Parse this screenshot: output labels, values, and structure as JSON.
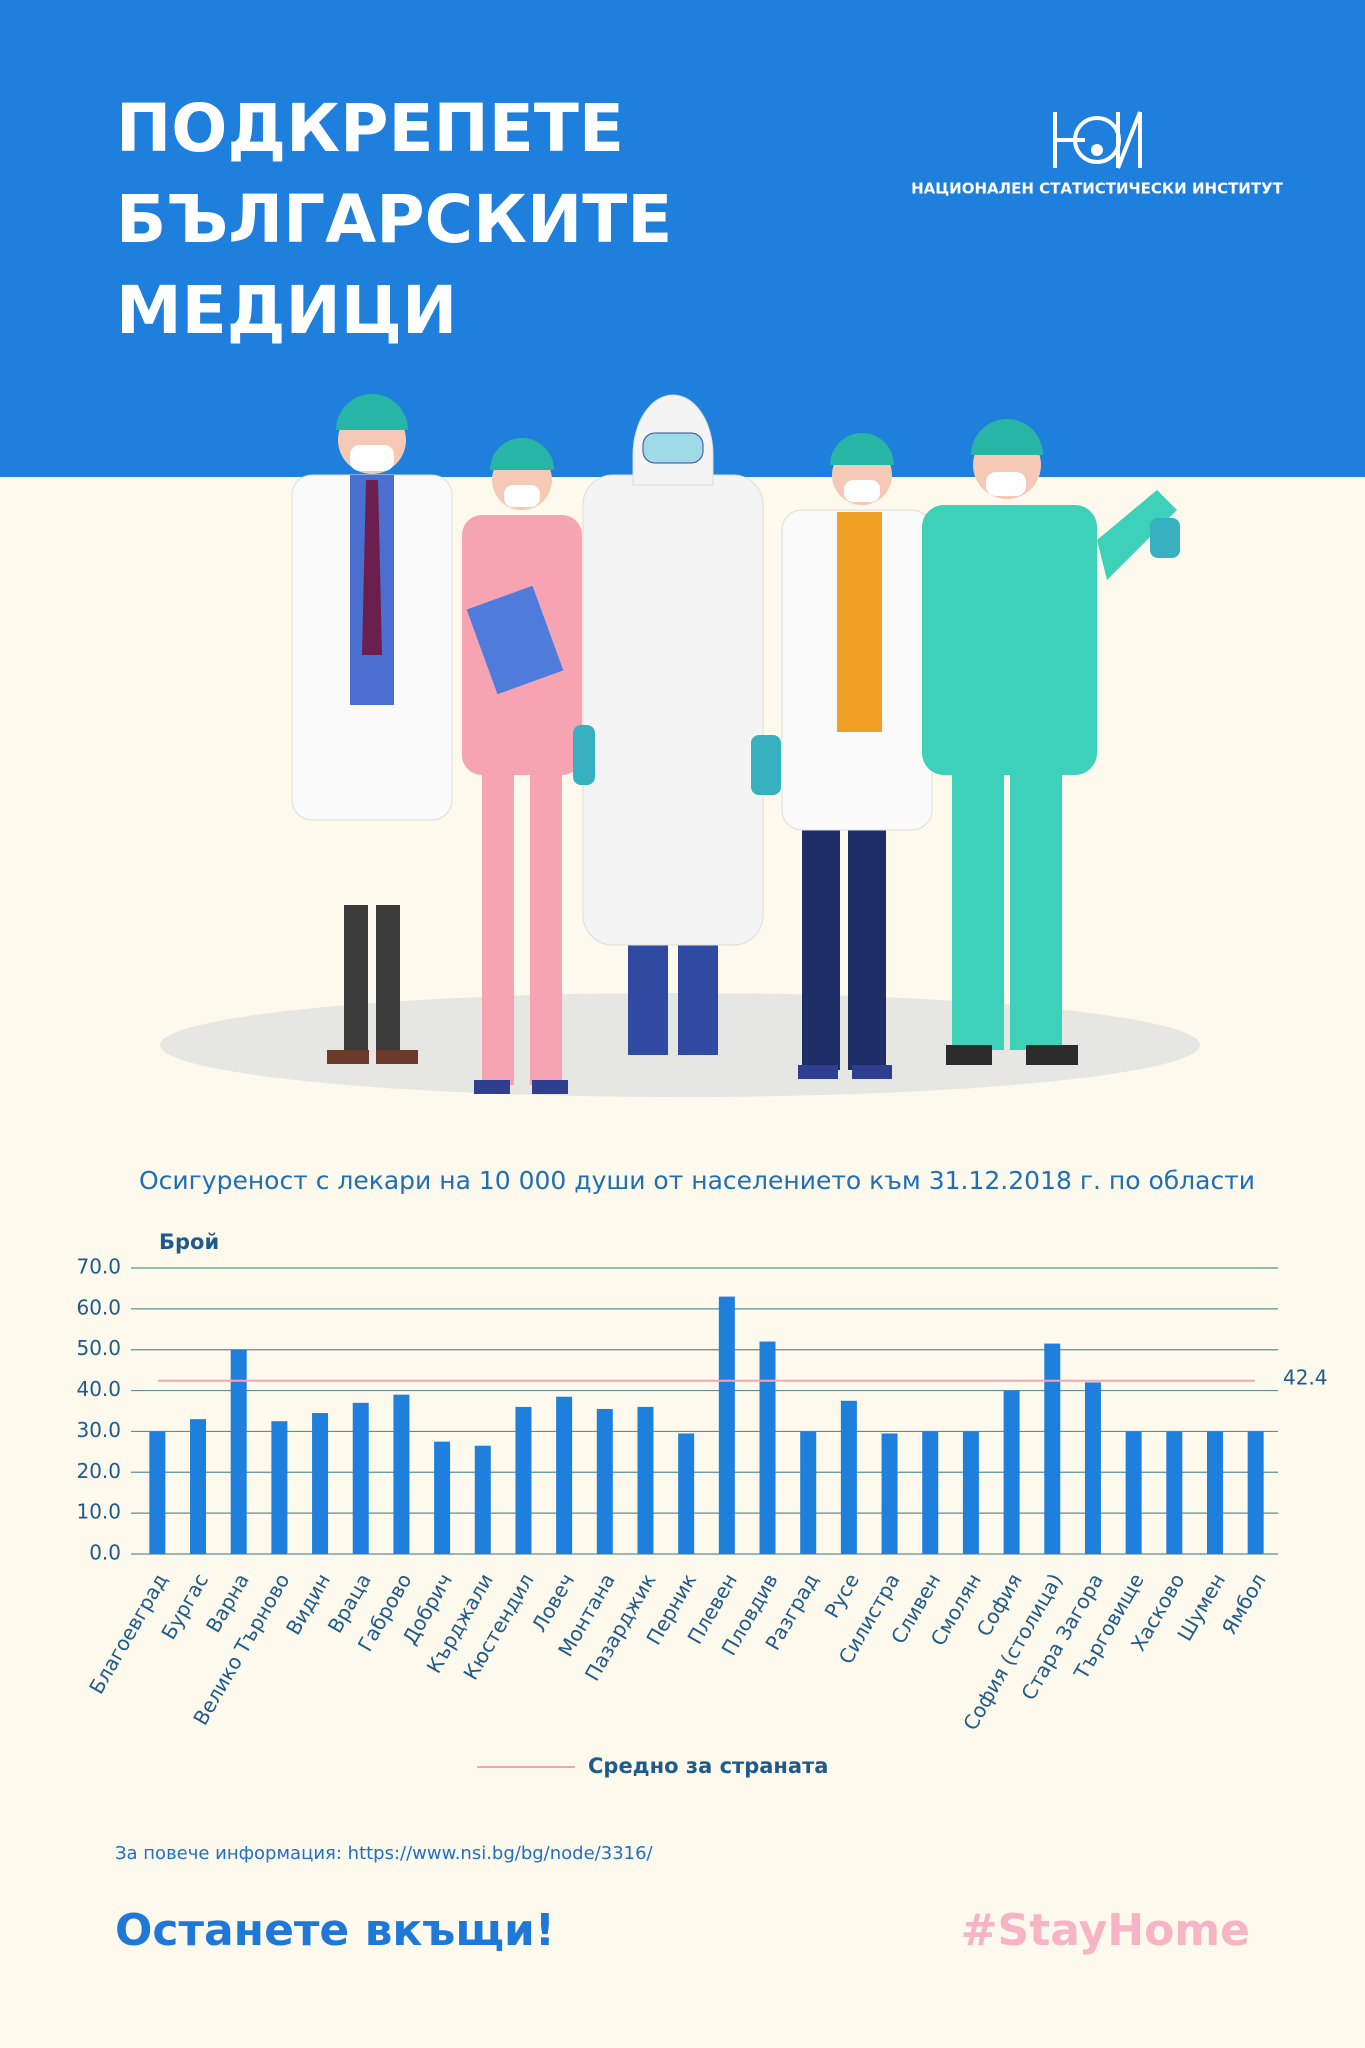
{
  "header": {
    "title_lines": [
      "ПОДКРЕПЕТЕ",
      "БЪЛГАРСКИТЕ",
      "МЕДИЦИ"
    ],
    "logo_text": "НАЦИОНАЛЕН СТАТИСТИЧЕСКИ ИНСТИТУТ"
  },
  "chart_data": {
    "type": "bar",
    "title": "Осигуреност с лекари на 10 000 души от населението към  31.12.2018 г. по области",
    "y_label": "Брой",
    "categories": [
      "Благоевград",
      "Бургас",
      "Варна",
      "Велико Търново",
      "Видин",
      "Враца",
      "Габрово",
      "Добрич",
      "Кърджали",
      "Кюстендил",
      "Ловеч",
      "Монтана",
      "Пазарджик",
      "Перник",
      "Плевен",
      "Пловдив",
      "Разград",
      "Русе",
      "Силистра",
      "Сливен",
      "Смолян",
      "София",
      "София (столица)",
      "Стара Загора",
      "Търговище",
      "Хасково",
      "Шумен",
      "Ямбол"
    ],
    "values": [
      30,
      33,
      50,
      32.5,
      34.5,
      37,
      39,
      27.5,
      26.5,
      36,
      38.5,
      35.5,
      36,
      29.5,
      63,
      52,
      30,
      37.5,
      29.5,
      30,
      30,
      40,
      51.5,
      42,
      30,
      30,
      30,
      30
    ],
    "color": "#1f7fdc",
    "ylim": [
      0,
      70
    ],
    "yticks": [
      {
        "value": 0,
        "label": "0.0"
      },
      {
        "value": 10,
        "label": "10.0"
      },
      {
        "value": 20,
        "label": "20.0"
      },
      {
        "value": 30,
        "label": "30.0"
      },
      {
        "value": 40,
        "label": "40.0"
      },
      {
        "value": 50,
        "label": "50.0"
      },
      {
        "value": 60,
        "label": "60.0"
      },
      {
        "value": 70,
        "label": "70.0"
      }
    ],
    "grid": true,
    "average": {
      "name": "Средно за страната",
      "value": 42.4,
      "color": "#f4a6b0"
    }
  },
  "footer": {
    "more_info": "За повече информация: https://www.nsi.bg/bg/node/3316/",
    "slogan": "Останете вкъщи!",
    "hashtag": "#StayHome"
  }
}
